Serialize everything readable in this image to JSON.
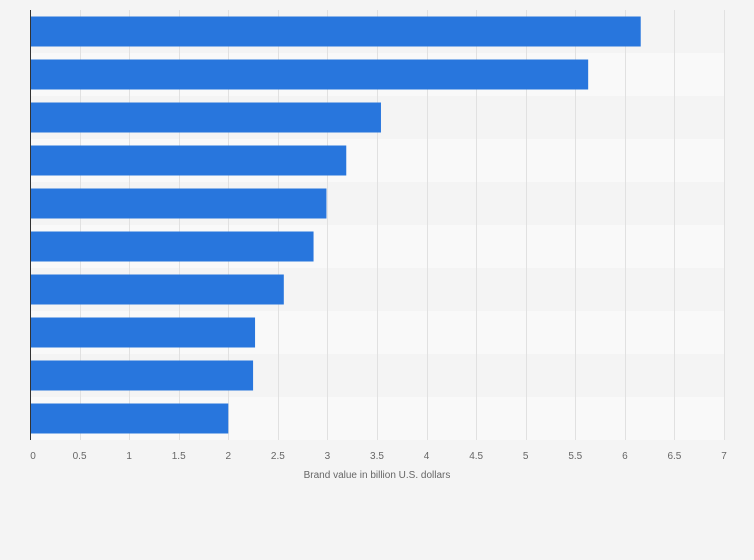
{
  "chart_data": {
    "type": "bar",
    "orientation": "horizontal",
    "title": "",
    "xlabel": "Brand value in billion U.S. dollars",
    "ylabel": "",
    "xlim": [
      0,
      7
    ],
    "x_ticks": [
      0,
      0.5,
      1,
      1.5,
      2,
      2.5,
      3,
      3.5,
      4,
      4.5,
      5,
      5.5,
      6,
      6.5,
      7
    ],
    "x_tick_labels": [
      "0",
      "0.5",
      "1",
      "1.5",
      "2",
      "2.5",
      "3",
      "3.5",
      "4",
      "4.5",
      "5",
      "5.5",
      "6",
      "6.5",
      "7"
    ],
    "categories": [
      "",
      "",
      "",
      "",
      "",
      "",
      "",
      "",
      "",
      ""
    ],
    "values": [
      6.16,
      5.63,
      3.54,
      3.19,
      2.99,
      2.86,
      2.56,
      2.27,
      2.25,
      2.0
    ],
    "bar_color": "#2876dd",
    "band_colors": [
      "#f4f4f4",
      "#f9f9f9"
    ],
    "grid": true,
    "legend": "none"
  }
}
